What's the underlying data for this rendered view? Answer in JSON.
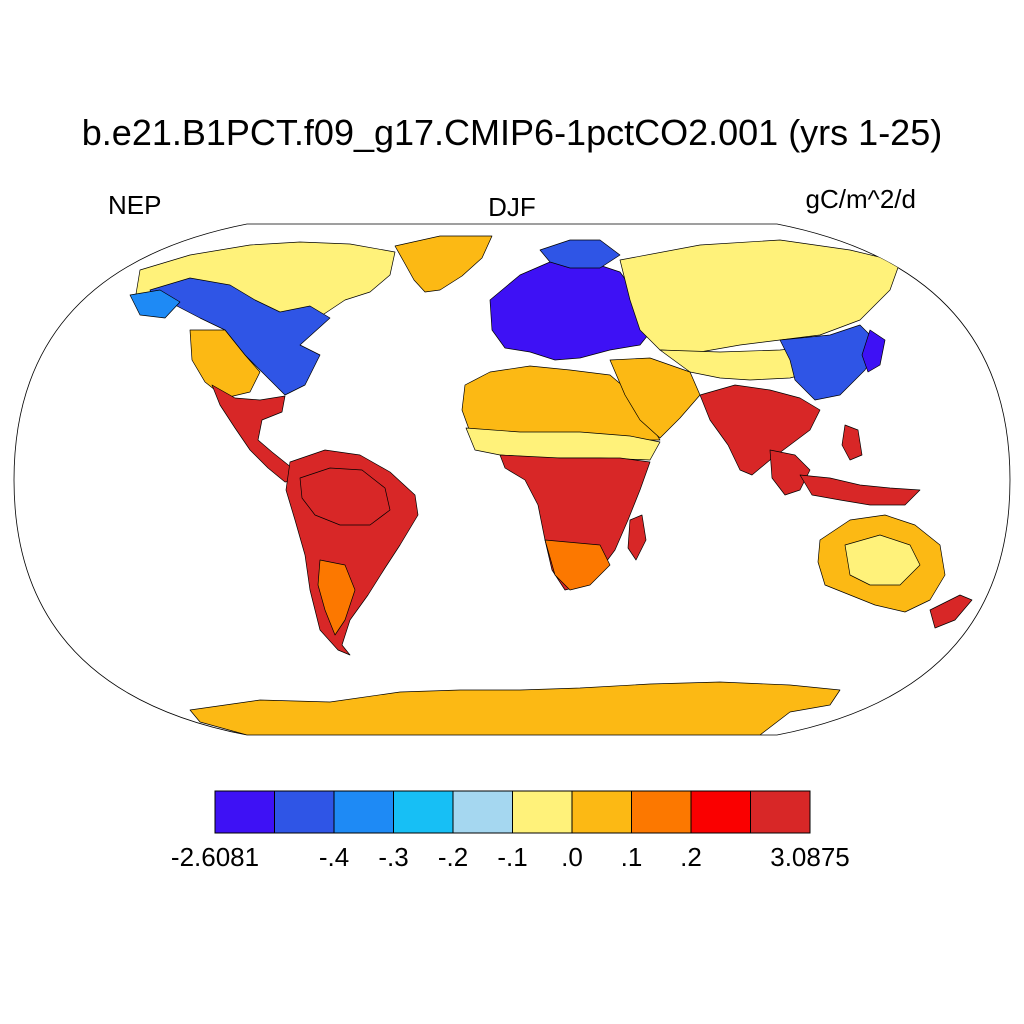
{
  "title": "b.e21.B1PCT.f09_g17.CMIP6-1pctCO2.001 (yrs 1-25)",
  "left_label": "NEP",
  "center_label": "DJF",
  "right_label": "gC/m^2/d",
  "colorbar": {
    "colors": [
      "#3e11f5",
      "#2f55e6",
      "#1e8af5",
      "#17bff5",
      "#a5d7f0",
      "#fff27a",
      "#fcb914",
      "#fc7800",
      "#fa0000",
      "#d82727"
    ],
    "tick_labels": [
      "-2.6081",
      "-.4",
      "-.3",
      "-.2",
      "-.1",
      ".0",
      ".1",
      ".2",
      "3.0875"
    ],
    "tick_boundaries": [
      0,
      2,
      3,
      4,
      5,
      6,
      7,
      8,
      10
    ]
  }
}
